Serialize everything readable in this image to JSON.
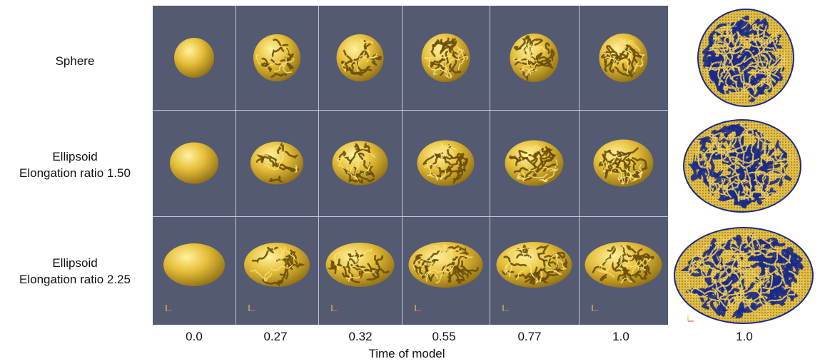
{
  "rows": [
    {
      "lines": [
        "Sphere"
      ],
      "shape": "sphere"
    },
    {
      "lines": [
        "Ellipsoid",
        "Elongation ratio 1.50"
      ],
      "shape": "ellipsoid-1.50"
    },
    {
      "lines": [
        "Ellipsoid",
        "Elongation ratio 2.25"
      ],
      "shape": "ellipsoid-2.25"
    }
  ],
  "columns": [
    "0.0",
    "0.27",
    "0.32",
    "0.55",
    "0.77",
    "1.0"
  ],
  "side_label": "1.0",
  "x_axis_title": "Time of model",
  "colors": {
    "panel_background": "#545a72",
    "surface": "#e6bf3a",
    "mesh_edges": "#1a2a8a",
    "grid_lines": "#c6c9d4"
  }
}
